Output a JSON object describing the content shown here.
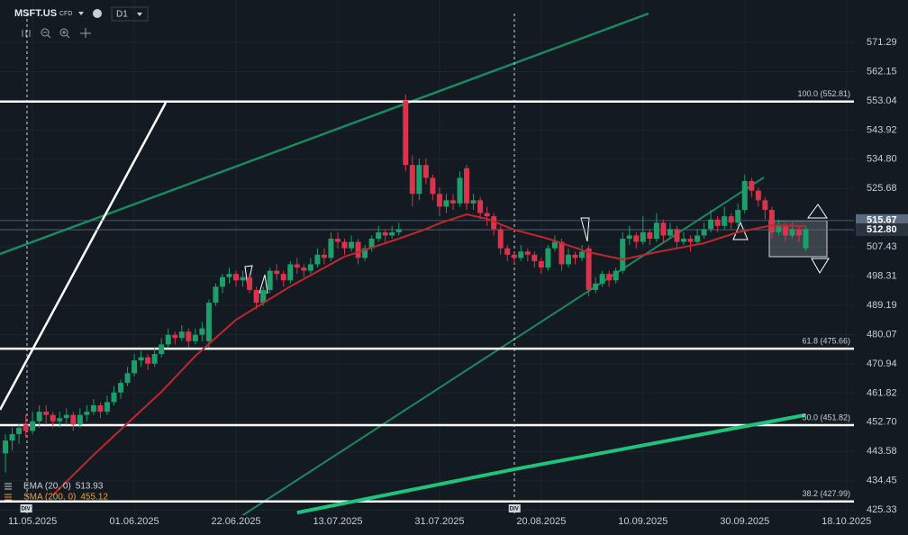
{
  "toolbar": {
    "symbol": "MSFT.US",
    "instrument": "CFD",
    "timeframe": "D1"
  },
  "chart_data": {
    "type": "candlestick",
    "ylim": [
      423.7,
      584.5
    ],
    "xlim": [
      -0.8,
      125.1
    ],
    "yticks": [
      571.29,
      562.15,
      553.04,
      543.92,
      {
        "value": 534.8,
        "label": "534.80"
      },
      525.68,
      507.43,
      498.31,
      489.19,
      480.07,
      470.94,
      461.82,
      {
        "value": 452.7,
        "label": "452.70"
      },
      443.58,
      434.45,
      425.33
    ],
    "xticks": [
      {
        "value": 4,
        "label": "11.05.2025"
      },
      {
        "value": 19,
        "label": "01.06.2025"
      },
      {
        "value": 34,
        "label": "22.06.2025"
      },
      {
        "value": 49,
        "label": "13.07.2025"
      },
      {
        "value": 64,
        "label": "31.07.2025"
      },
      {
        "value": 79,
        "label": "20.08.2025"
      },
      {
        "value": 94,
        "label": "10.09.2025"
      },
      {
        "value": 109,
        "label": "30.09.2025"
      },
      {
        "value": 124,
        "label": "18.10.2025"
      }
    ],
    "grid": true,
    "up_color": "#1e9e6a",
    "down_color": "#d9344c",
    "ohlc": [
      [
        443,
        449,
        437,
        447
      ],
      [
        447,
        451,
        444,
        449
      ],
      [
        449,
        452,
        446,
        451
      ],
      [
        452,
        455,
        448,
        450
      ],
      [
        450,
        456,
        449,
        453
      ],
      [
        453,
        458,
        451,
        456
      ],
      [
        456,
        458,
        452,
        455
      ],
      [
        455,
        456,
        451,
        453
      ],
      [
        453,
        456,
        451,
        454
      ],
      [
        454,
        457,
        452,
        455
      ],
      [
        455,
        456,
        450,
        452
      ],
      [
        452,
        457,
        451,
        455
      ],
      [
        455,
        458,
        453,
        456
      ],
      [
        456,
        460,
        455,
        458
      ],
      [
        458,
        459,
        454,
        456
      ],
      [
        456,
        461,
        455,
        459
      ],
      [
        459,
        464,
        458,
        462
      ],
      [
        462,
        466,
        460,
        465
      ],
      [
        465,
        470,
        464,
        468
      ],
      [
        468,
        474,
        467,
        472
      ],
      [
        472,
        475,
        470,
        473
      ],
      [
        473,
        474,
        469,
        471
      ],
      [
        471,
        476,
        470,
        474
      ],
      [
        474,
        479,
        473,
        477
      ],
      [
        477,
        482,
        476,
        480
      ],
      [
        480,
        481,
        477,
        479
      ],
      [
        479,
        483,
        478,
        481
      ],
      [
        481,
        482,
        476,
        478
      ],
      [
        478,
        482,
        477,
        480
      ],
      [
        480,
        484,
        478,
        482
      ],
      [
        478,
        491,
        476,
        490
      ],
      [
        490,
        496,
        489,
        495
      ],
      [
        495,
        499,
        493,
        498
      ],
      [
        498,
        501,
        496,
        499
      ],
      [
        499,
        500,
        495,
        497
      ],
      [
        497,
        500,
        495,
        498
      ],
      [
        498,
        499,
        493,
        494
      ],
      [
        494,
        495,
        488,
        490
      ],
      [
        490,
        495,
        489,
        494
      ],
      [
        494,
        501,
        493,
        500
      ],
      [
        500,
        502,
        497,
        499
      ],
      [
        499,
        500,
        495,
        497
      ],
      [
        497,
        503,
        496,
        502
      ],
      [
        502,
        504,
        499,
        501
      ],
      [
        501,
        502,
        498,
        500
      ],
      [
        500,
        504,
        499,
        502
      ],
      [
        502,
        507,
        501,
        505
      ],
      [
        505,
        507,
        502,
        504
      ],
      [
        504,
        512,
        503,
        510
      ],
      [
        510,
        512,
        507,
        509
      ],
      [
        509,
        510,
        505,
        507
      ],
      [
        507,
        511,
        506,
        509
      ],
      [
        509,
        510,
        502,
        504
      ],
      [
        504,
        508,
        503,
        507
      ],
      [
        507,
        511,
        506,
        510
      ],
      [
        510,
        514,
        509,
        512
      ],
      [
        512,
        513,
        509,
        511
      ],
      [
        511,
        514,
        510,
        512
      ],
      [
        512,
        515,
        511,
        513
      ],
      [
        553,
        555,
        531,
        533
      ],
      [
        533,
        536,
        520,
        524
      ],
      [
        524,
        535,
        522,
        533
      ],
      [
        533,
        535,
        527,
        529
      ],
      [
        529,
        530,
        522,
        524
      ],
      [
        524,
        526,
        517,
        520
      ],
      [
        520,
        524,
        518,
        522
      ],
      [
        522,
        524,
        519,
        521
      ],
      [
        521,
        531,
        520,
        529
      ],
      [
        532,
        533,
        519,
        521
      ],
      [
        521,
        524,
        519,
        522
      ],
      [
        522,
        523,
        516,
        518
      ],
      [
        518,
        520,
        514,
        517
      ],
      [
        517,
        518,
        511,
        513
      ],
      [
        513,
        514,
        505,
        507
      ],
      [
        507,
        508,
        503,
        505
      ],
      [
        505,
        506,
        502,
        504
      ],
      [
        504,
        508,
        503,
        506
      ],
      [
        506,
        507,
        503,
        505
      ],
      [
        505,
        506,
        501,
        503
      ],
      [
        503,
        504,
        499,
        501
      ],
      [
        501,
        508,
        500,
        507
      ],
      [
        507,
        511,
        506,
        509
      ],
      [
        509,
        510,
        500,
        502
      ],
      [
        502,
        507,
        501,
        505
      ],
      [
        505,
        506,
        502,
        504
      ],
      [
        504,
        508,
        503,
        506
      ],
      [
        507,
        508,
        492,
        494
      ],
      [
        494,
        498,
        493,
        496
      ],
      [
        496,
        500,
        495,
        499
      ],
      [
        499,
        500,
        495,
        497
      ],
      [
        497,
        501,
        496,
        500
      ],
      [
        500,
        512,
        499,
        510
      ],
      [
        510,
        514,
        508,
        511
      ],
      [
        511,
        512,
        507,
        509
      ],
      [
        509,
        517,
        508,
        512
      ],
      [
        512,
        513,
        508,
        510
      ],
      [
        510,
        518,
        509,
        515
      ],
      [
        515,
        516,
        509,
        511
      ],
      [
        511,
        515,
        510,
        513
      ],
      [
        513,
        514,
        507,
        509
      ],
      [
        509,
        512,
        508,
        510
      ],
      [
        510,
        511,
        506,
        509
      ],
      [
        509,
        513,
        508,
        511
      ],
      [
        511,
        515,
        510,
        513
      ],
      [
        513,
        519,
        512,
        516
      ],
      [
        516,
        517,
        512,
        514
      ],
      [
        514,
        520,
        513,
        517
      ],
      [
        517,
        518,
        513,
        515
      ],
      [
        515,
        521,
        514,
        519
      ],
      [
        519,
        530,
        518,
        528
      ],
      [
        528,
        529,
        523,
        525
      ],
      [
        525,
        526,
        520,
        522
      ],
      [
        522,
        523,
        516,
        519
      ],
      [
        519,
        520,
        510,
        512
      ],
      [
        512,
        516,
        511,
        514
      ],
      [
        514,
        515,
        509,
        511
      ],
      [
        511,
        515,
        510,
        513
      ],
      [
        513,
        514,
        509,
        511
      ],
      [
        507,
        514,
        506,
        513
      ]
    ],
    "series": [
      {
        "name": "EMA (20, 0)",
        "last": 513.93,
        "color": "#c0262e",
        "legend_color": "#d0d4da",
        "width": 2,
        "x": [
          7,
          13,
          18,
          23,
          28,
          34,
          42,
          50,
          58,
          62,
          64,
          68,
          71,
          75,
          80,
          86,
          91,
          96,
          103,
          108,
          113,
          118
        ],
        "values": [
          430,
          442.5,
          452.4,
          462.2,
          473.4,
          484.7,
          495.1,
          504.4,
          510,
          513,
          514.8,
          517.6,
          516.2,
          512.8,
          510,
          505.8,
          503.5,
          505.8,
          508.6,
          512,
          514.2,
          513.9
        ]
      },
      {
        "name": "SMA (200, 0)",
        "last": 455.12,
        "color": "#1ec47c",
        "legend_color": "#f0a030",
        "width": 4,
        "x": [
          43,
          75,
          118
        ],
        "values": [
          424.5,
          438,
          455
        ]
      }
    ],
    "price_lines": [
      {
        "value": 515.67,
        "color": "#5a6b80"
      },
      {
        "value": 512.8,
        "label": "512.80",
        "color": "#2a3340"
      }
    ],
    "fib_levels": [
      {
        "label": "100.0 (552.81)",
        "value": 552.81
      },
      {
        "label": "61.8 (475.66)",
        "value": 475.66
      },
      {
        "label": "50.0 (451.82)",
        "value": 451.82
      },
      {
        "label": "38.2 (427.99)",
        "value": 427.99
      }
    ],
    "events": [
      {
        "x": 3,
        "label": "DIV"
      },
      {
        "x": 75,
        "label": "DIV"
      }
    ]
  }
}
